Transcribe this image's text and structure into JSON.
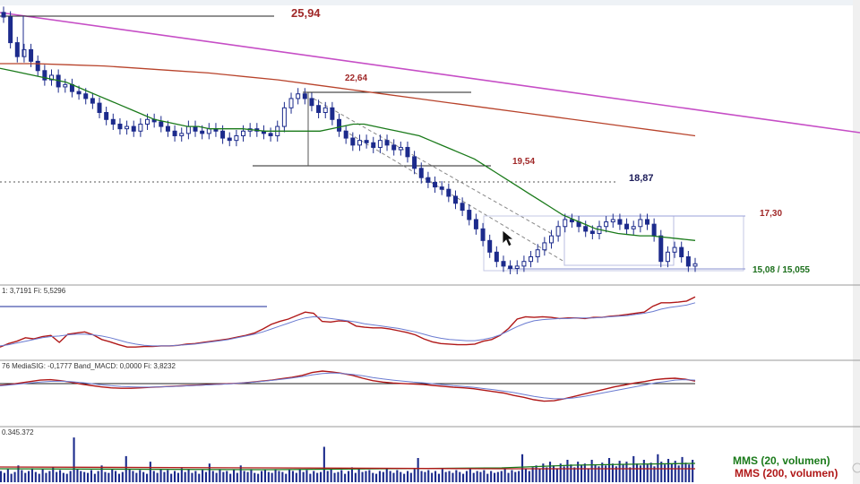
{
  "window": {
    "title": "",
    "header_text": ""
  },
  "chart_data": [
    {
      "panel": "price",
      "type": "candlestick",
      "price_labels": [
        {
          "id": "lbl-2594",
          "text": "25,94",
          "value": 25.94
        },
        {
          "id": "lbl-2264",
          "text": "22,64",
          "value": 22.64
        },
        {
          "id": "lbl-1954",
          "text": "19,54",
          "value": 19.54
        },
        {
          "id": "lbl-1887",
          "text": "18,87",
          "value": 18.87
        },
        {
          "id": "lbl-1730",
          "text": "17,30",
          "value": 17.3
        },
        {
          "id": "lbl-1508",
          "text": "15,08 / 15,055",
          "value": 15.08
        }
      ],
      "close_series": [
        25.9,
        24.8,
        24.2,
        24.5,
        24.0,
        23.6,
        23.2,
        23.4,
        22.9,
        23.0,
        22.7,
        22.6,
        22.4,
        22.2,
        21.8,
        21.5,
        21.3,
        21.1,
        21.2,
        21.0,
        21.3,
        21.5,
        21.4,
        21.2,
        21.0,
        20.8,
        20.9,
        21.2,
        21.0,
        20.9,
        21.1,
        21.0,
        20.7,
        20.6,
        20.8,
        21.0,
        21.1,
        21.0,
        20.9,
        20.8,
        21.2,
        22.0,
        22.4,
        22.6,
        22.4,
        22.1,
        21.8,
        22.0,
        21.5,
        21.0,
        20.7,
        20.4,
        20.6,
        20.5,
        20.3,
        20.6,
        20.4,
        20.2,
        20.3,
        19.9,
        19.4,
        19.0,
        18.8,
        18.6,
        18.5,
        18.2,
        17.9,
        17.6,
        17.2,
        16.8,
        16.3,
        15.8,
        15.4,
        15.2,
        15.1,
        15.2,
        15.4,
        15.6,
        15.9,
        16.2,
        16.5,
        16.9,
        17.2,
        17.1,
        16.9,
        16.7,
        16.6,
        16.9,
        17.1,
        17.2,
        17.0,
        16.8,
        16.9,
        17.2,
        17.0,
        16.5,
        15.4,
        15.8,
        16.0,
        15.6,
        15.2,
        15.3
      ],
      "mms20": [
        23.7,
        23.6,
        23.5,
        23.4,
        23.3,
        23.2,
        23.1,
        22.9,
        22.7,
        22.5,
        22.3,
        22.1,
        21.9,
        21.7,
        21.5,
        21.4,
        21.3,
        21.2,
        21.2,
        21.1,
        21.1,
        21.1,
        21.1,
        21.05,
        21.0,
        21.0,
        21.0,
        21.0,
        21.0,
        21.0,
        21.1,
        21.2,
        21.3,
        21.3,
        21.2,
        21.1,
        21.0,
        20.9,
        20.8,
        20.6,
        20.4,
        20.2,
        20.0,
        19.8,
        19.5,
        19.2,
        18.9,
        18.6,
        18.3,
        18.0,
        17.7,
        17.4,
        17.2,
        17.0,
        16.8,
        16.7,
        16.6,
        16.55,
        16.5,
        16.5,
        16.45,
        16.4,
        16.35,
        16.3
      ],
      "mms200": [
        23.9,
        23.9,
        23.85,
        23.8,
        23.7,
        23.6,
        23.5,
        23.35,
        23.2,
        23.0,
        22.8,
        22.6,
        22.4,
        22.2,
        22.0,
        21.8,
        21.6,
        21.4,
        21.2,
        21.0,
        20.8
      ]
    },
    {
      "panel": "oscillator",
      "type": "line",
      "header": "1: 3,7191  Fi: 5,5296",
      "series": [
        {
          "name": "",
          "color": "#b01818",
          "values": [
            12,
            18,
            22,
            28,
            26,
            30,
            32,
            20,
            34,
            36,
            38,
            33,
            25,
            21,
            16,
            12,
            12,
            13,
            13,
            14,
            14,
            15,
            17,
            18,
            20,
            22,
            24,
            26,
            29,
            32,
            36,
            43,
            51,
            56,
            60,
            66,
            72,
            70,
            56,
            55,
            57,
            56,
            48,
            46,
            45,
            45,
            43,
            40,
            37,
            33,
            26,
            21,
            18,
            17,
            16,
            16,
            17,
            22,
            25,
            32,
            44,
            60,
            64,
            63,
            64,
            63,
            61,
            62,
            62,
            61,
            63,
            63,
            65,
            66,
            68,
            70,
            72,
            82,
            88,
            88,
            89,
            91,
            98
          ]
        },
        {
          "name": "",
          "color": "#6a7bd1",
          "values": [
            14,
            16,
            19,
            22,
            25,
            28,
            30,
            31,
            33,
            34,
            34,
            33,
            31,
            28,
            24,
            20,
            17,
            15,
            14,
            14,
            14,
            15,
            16,
            17,
            19,
            21,
            23,
            25,
            28,
            31,
            34,
            38,
            43,
            48,
            53,
            58,
            62,
            64,
            63,
            61,
            59,
            57,
            55,
            52,
            50,
            48,
            46,
            44,
            41,
            38,
            34,
            30,
            27,
            25,
            24,
            23,
            23,
            25,
            28,
            33,
            40,
            47,
            53,
            57,
            59,
            60,
            61,
            61,
            62,
            62,
            62,
            63,
            64,
            65,
            66,
            68,
            70,
            73,
            77,
            80,
            82,
            84,
            88
          ]
        }
      ]
    },
    {
      "panel": "macd",
      "type": "line",
      "header": "76  MediaSIG: -0,1777  Band_MACD: 0,0000  Fi: 3,8232",
      "series": [
        {
          "name": "",
          "color": "#b01818",
          "values": [
            30,
            34,
            40,
            46,
            52,
            54,
            50,
            44,
            36,
            30,
            24,
            20,
            18,
            18,
            20,
            22,
            24,
            26,
            28,
            30,
            32,
            34,
            36,
            38,
            40,
            44,
            48,
            52,
            58,
            64,
            72,
            84,
            90,
            86,
            80,
            72,
            60,
            50,
            44,
            40,
            38,
            36,
            34,
            30,
            26,
            22,
            20,
            16,
            10,
            4,
            -2,
            -12,
            -20,
            -30,
            -36,
            -34,
            -26,
            -16,
            -6,
            4,
            14,
            24,
            32,
            40,
            46,
            54,
            58,
            60,
            56,
            48
          ]
        },
        {
          "name": "",
          "color": "#6a7bd1",
          "values": [
            28,
            32,
            36,
            40,
            44,
            47,
            48,
            46,
            42,
            38,
            33,
            29,
            26,
            24,
            23,
            23,
            24,
            25,
            27,
            29,
            31,
            33,
            35,
            37,
            40,
            43,
            47,
            51,
            56,
            61,
            67,
            74,
            80,
            82,
            80,
            76,
            70,
            63,
            57,
            52,
            48,
            44,
            41,
            37,
            33,
            29,
            26,
            22,
            17,
            12,
            6,
            0,
            -8,
            -16,
            -22,
            -26,
            -26,
            -22,
            -16,
            -8,
            0,
            8,
            16,
            24,
            32,
            40,
            46,
            52,
            54,
            52
          ]
        }
      ]
    },
    {
      "panel": "volume",
      "type": "bar",
      "header": "0.345.372",
      "values": [
        12,
        10,
        14,
        9,
        11,
        18,
        13,
        10,
        12,
        15,
        11,
        9,
        14,
        10,
        12,
        16,
        11,
        13,
        10,
        9,
        12,
        48,
        14,
        12,
        11,
        10,
        13,
        9,
        12,
        18,
        11,
        10,
        14,
        12,
        9,
        11,
        28,
        14,
        12,
        10,
        13,
        11,
        9,
        22,
        12,
        10,
        14,
        11,
        13,
        9,
        12,
        10,
        15,
        11,
        14,
        10,
        12,
        9,
        13,
        11,
        20,
        12,
        10,
        14,
        11,
        12,
        9,
        13,
        10,
        18,
        12,
        11,
        14,
        10,
        9,
        12,
        13,
        11,
        10,
        14,
        12,
        11,
        9,
        13,
        12,
        10,
        14,
        11,
        13,
        9,
        12,
        10,
        11,
        38,
        12,
        14,
        10,
        11,
        13,
        9,
        12,
        16,
        10,
        14,
        11,
        12,
        13,
        10,
        9,
        12,
        11,
        14,
        12,
        10,
        13,
        11,
        9,
        12,
        10,
        14,
        26,
        12,
        11,
        13,
        10,
        12,
        9,
        14,
        11,
        12,
        10,
        13,
        11,
        9,
        12,
        14,
        10,
        12,
        11,
        13,
        9,
        12,
        10,
        11,
        12,
        14,
        10,
        13,
        11,
        12,
        30,
        14,
        12,
        16,
        18,
        14,
        20,
        16,
        22,
        18,
        15,
        20,
        17,
        24,
        19,
        16,
        22,
        18,
        20,
        15,
        24,
        19,
        17,
        21,
        18,
        26,
        20,
        17,
        23,
        19,
        22,
        16,
        28,
        20,
        18,
        24,
        19,
        21,
        17,
        30,
        22,
        19,
        25,
        20,
        23,
        18,
        27,
        21,
        19,
        24
      ],
      "legend": [
        {
          "id": "legend-mms20",
          "text": "MMS (20, volumen)",
          "color": "#1a7a1a"
        },
        {
          "id": "legend-mms200",
          "text": "MMS (200, volumen)",
          "color": "#b01818"
        }
      ]
    }
  ]
}
